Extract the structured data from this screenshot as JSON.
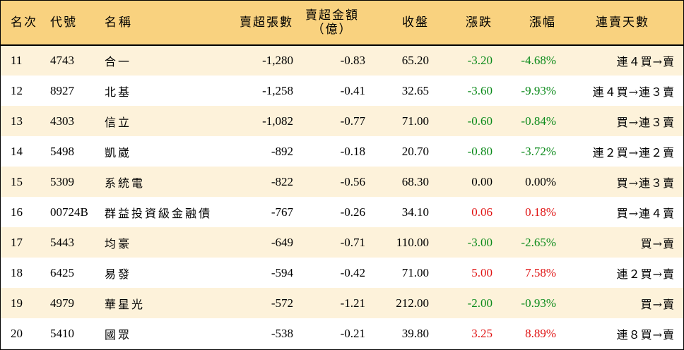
{
  "colors": {
    "header_bg": "#f9d27f",
    "odd_row_bg": "#fdf2da",
    "even_row_bg": "#ffffff",
    "up": "#e01414",
    "down": "#0b8a1a",
    "flat": "#000000"
  },
  "headers": {
    "rank": "名次",
    "code": "代號",
    "name": "名稱",
    "net_sell_shares": "賣超張數",
    "net_sell_amount": "賣超金額",
    "net_sell_amount_unit": "（億）",
    "close": "收盤",
    "change": "漲跌",
    "change_pct": "漲幅",
    "streak": "連賣天數"
  },
  "rows": [
    {
      "rank": "11",
      "code": "4743",
      "name": "合一",
      "net_sell_shares": "-1,280",
      "net_sell_amount": "-0.83",
      "close": "65.20",
      "change": "-3.20",
      "change_pct": "-4.68%",
      "trend": "down",
      "streak": "連４買→賣"
    },
    {
      "rank": "12",
      "code": "8927",
      "name": "北基",
      "net_sell_shares": "-1,258",
      "net_sell_amount": "-0.41",
      "close": "32.65",
      "change": "-3.60",
      "change_pct": "-9.93%",
      "trend": "down",
      "streak": "連４買→連３賣"
    },
    {
      "rank": "13",
      "code": "4303",
      "name": "信立",
      "net_sell_shares": "-1,082",
      "net_sell_amount": "-0.77",
      "close": "71.00",
      "change": "-0.60",
      "change_pct": "-0.84%",
      "trend": "down",
      "streak": "買→連３賣"
    },
    {
      "rank": "14",
      "code": "5498",
      "name": "凱崴",
      "net_sell_shares": "-892",
      "net_sell_amount": "-0.18",
      "close": "20.70",
      "change": "-0.80",
      "change_pct": "-3.72%",
      "trend": "down",
      "streak": "連２買→連２賣"
    },
    {
      "rank": "15",
      "code": "5309",
      "name": "系統電",
      "net_sell_shares": "-822",
      "net_sell_amount": "-0.56",
      "close": "68.30",
      "change": "0.00",
      "change_pct": "0.00%",
      "trend": "flat",
      "streak": "買→連３賣"
    },
    {
      "rank": "16",
      "code": "00724B",
      "name": "群益投資級金融債",
      "net_sell_shares": "-767",
      "net_sell_amount": "-0.26",
      "close": "34.10",
      "change": "0.06",
      "change_pct": "0.18%",
      "trend": "up",
      "streak": "買→連４賣"
    },
    {
      "rank": "17",
      "code": "5443",
      "name": "均豪",
      "net_sell_shares": "-649",
      "net_sell_amount": "-0.71",
      "close": "110.00",
      "change": "-3.00",
      "change_pct": "-2.65%",
      "trend": "down",
      "streak": "買→賣"
    },
    {
      "rank": "18",
      "code": "6425",
      "name": "易發",
      "net_sell_shares": "-594",
      "net_sell_amount": "-0.42",
      "close": "71.00",
      "change": "5.00",
      "change_pct": "7.58%",
      "trend": "up",
      "streak": "連２買→賣"
    },
    {
      "rank": "19",
      "code": "4979",
      "name": "華星光",
      "net_sell_shares": "-572",
      "net_sell_amount": "-1.21",
      "close": "212.00",
      "change": "-2.00",
      "change_pct": "-0.93%",
      "trend": "down",
      "streak": "買→賣"
    },
    {
      "rank": "20",
      "code": "5410",
      "name": "國眾",
      "net_sell_shares": "-538",
      "net_sell_amount": "-0.21",
      "close": "39.80",
      "change": "3.25",
      "change_pct": "8.89%",
      "trend": "up",
      "streak": "連８買→賣"
    }
  ]
}
